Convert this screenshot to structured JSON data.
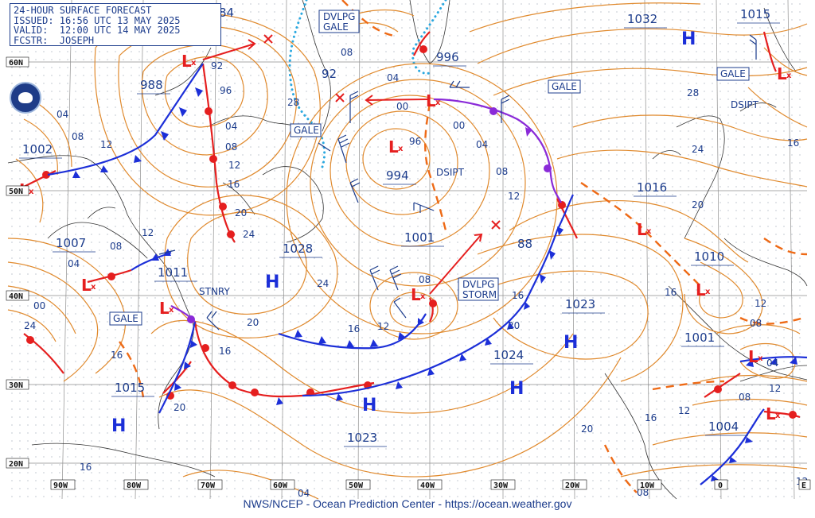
{
  "header": {
    "title": "24-HOUR SURFACE FORECAST",
    "issued": "ISSUED: 16:56 UTC 13 MAY 2025",
    "valid": "VALID:  12:00 UTC 14 MAY 2025",
    "forecaster": "FCSTR:  JOSEPH"
  },
  "footer": "NWS/NCEP - Ocean Prediction Center - https://ocean.weather.gov",
  "latitude_labels": [
    "60N",
    "50N",
    "40N",
    "30N",
    "20N"
  ],
  "longitude_labels": [
    "90W",
    "80W",
    "70W",
    "60W",
    "50W",
    "40W",
    "30W",
    "20W",
    "10W",
    "0",
    "E"
  ],
  "pressure_centers": [
    {
      "type": "L",
      "value": "988"
    },
    {
      "type": "L",
      "value": "1002"
    },
    {
      "type": "L",
      "value": "1007"
    },
    {
      "type": "L",
      "value": "994"
    },
    {
      "type": "L",
      "value": "996"
    },
    {
      "type": "L",
      "value": "1001"
    },
    {
      "type": "L",
      "value": "1010"
    },
    {
      "type": "L",
      "value": "1001"
    },
    {
      "type": "L",
      "value": "1004"
    },
    {
      "type": "L",
      "value": "1015"
    },
    {
      "type": "L",
      "value": "1011"
    },
    {
      "type": "H",
      "value": "1028"
    },
    {
      "type": "H",
      "value": "1015"
    },
    {
      "type": "H",
      "value": "1023"
    },
    {
      "type": "H",
      "value": "1024"
    },
    {
      "type": "H",
      "value": "1023"
    },
    {
      "type": "H",
      "value": "1032"
    },
    {
      "type": "L",
      "value": "1016"
    }
  ],
  "warnings": [
    {
      "kind": "box",
      "text": "DVLPG\nGALE"
    },
    {
      "kind": "box",
      "text": "GALE"
    },
    {
      "kind": "box",
      "text": "GALE"
    },
    {
      "kind": "box",
      "text": "GALE"
    },
    {
      "kind": "box",
      "text": "GALE"
    },
    {
      "kind": "box",
      "text": "DVLPG\nSTORM"
    },
    {
      "kind": "text",
      "text": "DSIPT"
    },
    {
      "kind": "text",
      "text": "DSIPT"
    },
    {
      "kind": "text",
      "text": "STNRY"
    }
  ],
  "isobar_labels": [
    "84",
    "92",
    "96",
    "04",
    "08",
    "12",
    "16",
    "20",
    "24",
    "28",
    "00",
    "88",
    "08",
    "12",
    "16",
    "20",
    "24",
    "04",
    "00",
    "92",
    "96",
    "04",
    "08",
    "12",
    "16",
    "20",
    "24",
    "00",
    "04",
    "08",
    "12",
    "16",
    "20",
    "16",
    "12",
    "08",
    "04",
    "08",
    "12",
    "16",
    "20",
    "24",
    "28",
    "16",
    "20",
    "12",
    "08",
    "04",
    "08",
    "12",
    "16",
    "20",
    "16",
    "12",
    "08",
    "04",
    "00"
  ],
  "colors": {
    "isobar": "#e08a2e",
    "warm_front": "#e51f1f",
    "cold_front": "#1c2fd8",
    "occluded_front": "#8a2ad8",
    "label": "#1c3c8c",
    "coast": "#333333",
    "ice": "#29a8e0"
  },
  "icons": [
    "noaa-logo-icon"
  ]
}
